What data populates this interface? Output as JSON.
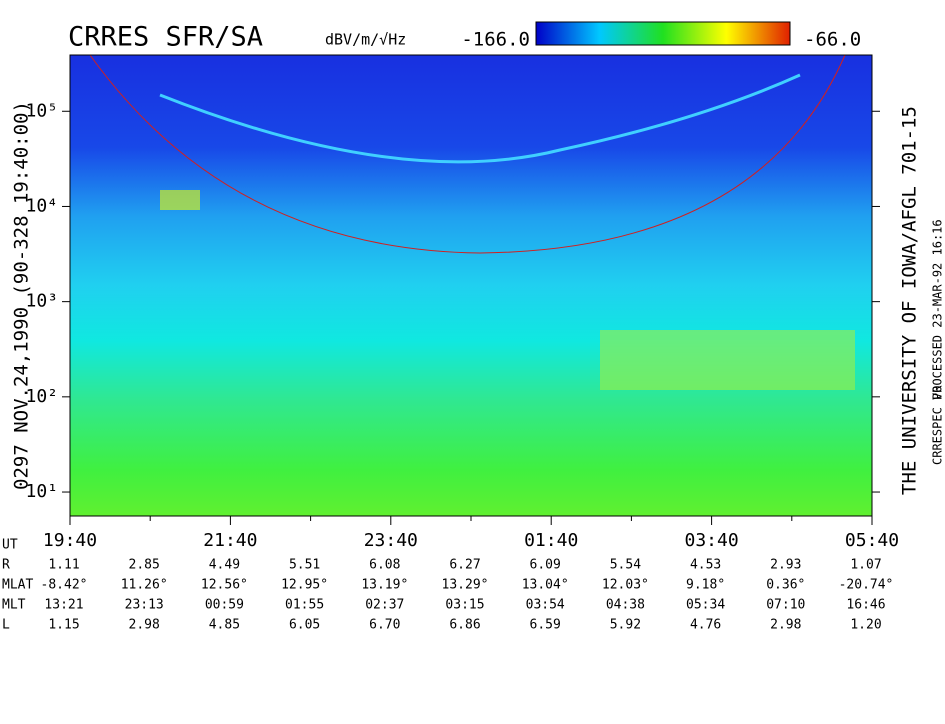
{
  "chart_data": {
    "type": "spectrogram",
    "title": "CRRES SFR/SA",
    "colorbar": {
      "label": "dBV/m/√Hz",
      "lim": [
        {
          "value": -166,
          "label": "-166.0"
        },
        {
          "value": -66,
          "label": "-66.0"
        }
      ]
    },
    "side_label": "0297  NOV.24,1990  (90-328 19:40:00)",
    "credit": "THE UNIVERSITY OF IOWA/AFGL 701-15",
    "processed": "PROCESSED 23-MAR-92  16:16",
    "version": "CRRESPEC V0",
    "log_scale": true,
    "ylim": [
      5.6,
      390000
    ],
    "yticks": [
      {
        "value": 10,
        "label": "10¹"
      },
      {
        "value": 100,
        "label": "10²"
      },
      {
        "value": 1000,
        "label": "10³"
      },
      {
        "value": 10000,
        "label": "10⁴"
      },
      {
        "value": 100000,
        "label": "10⁵"
      }
    ],
    "xticks": [
      "19:40",
      null,
      "21:40",
      null,
      "23:40",
      null,
      "01:40",
      null,
      "03:40",
      null,
      "05:40"
    ],
    "ephemeris": [
      {
        "name": "UT"
      },
      {
        "name": "R",
        "values": [
          "1.11",
          "2.85",
          "4.49",
          "5.51",
          "6.08",
          "6.27",
          "6.09",
          "5.54",
          "4.53",
          "2.93",
          "1.07"
        ]
      },
      {
        "name": "MLAT",
        "values": [
          "-8.42°",
          "11.26°",
          "12.56°",
          "12.95°",
          "13.19°",
          "13.29°",
          "13.04°",
          "12.03°",
          "9.18°",
          "0.36°",
          "-20.74°"
        ]
      },
      {
        "name": "MLT",
        "values": [
          "13:21",
          "23:13",
          "00:59",
          "01:55",
          "02:37",
          "03:15",
          "03:54",
          "04:38",
          "05:34",
          "07:10",
          "16:46"
        ]
      },
      {
        "name": "L",
        "values": [
          "1.15",
          "2.98",
          "4.85",
          "6.05",
          "6.70",
          "6.86",
          "6.59",
          "5.92",
          "4.76",
          "2.98",
          "1.20"
        ]
      }
    ]
  }
}
